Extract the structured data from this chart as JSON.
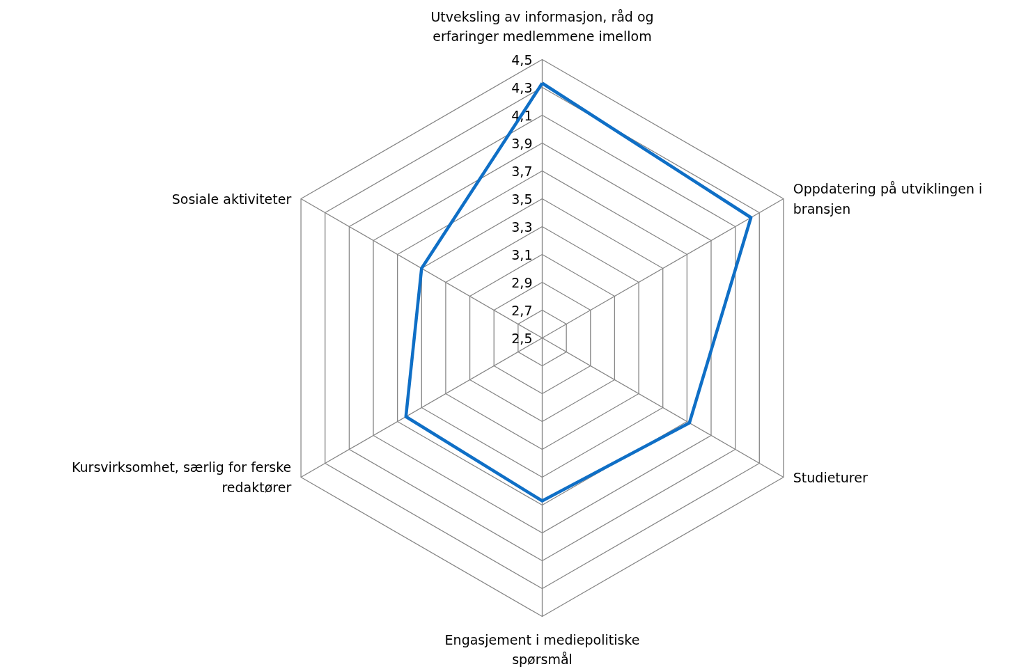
{
  "chart_data": {
    "type": "radar",
    "categories": [
      "Utveksling av informasjon, råd og erfaringer medlemmene imellom",
      "Oppdatering på utviklingen i bransjen",
      "Studieturer",
      "Engasjement i mediepolitiske spørsmål",
      "Kursvirksomhet, særlig for ferske redaktører",
      "Sosiale aktiviteter"
    ],
    "series": [
      {
        "color": "#0f6fc6",
        "values": [
          4.33,
          4.23,
          3.72,
          3.67,
          3.63,
          3.5
        ]
      }
    ],
    "ylim": [
      2.5,
      4.5
    ],
    "yticks": [
      {
        "value": 2.5,
        "label": "2,5"
      },
      {
        "value": 2.7,
        "label": "2,7"
      },
      {
        "value": 2.9,
        "label": "2,9"
      },
      {
        "value": 3.1,
        "label": "3,1"
      },
      {
        "value": 3.3,
        "label": "3,3"
      },
      {
        "value": 3.5,
        "label": "3,5"
      },
      {
        "value": 3.7,
        "label": "3,7"
      },
      {
        "value": 3.9,
        "label": "3,9"
      },
      {
        "value": 4.1,
        "label": "4,1"
      },
      {
        "value": 4.3,
        "label": "4,3"
      },
      {
        "value": 4.5,
        "label": "4,5"
      }
    ],
    "grid": true,
    "marker": "none",
    "line_style": "solid"
  }
}
